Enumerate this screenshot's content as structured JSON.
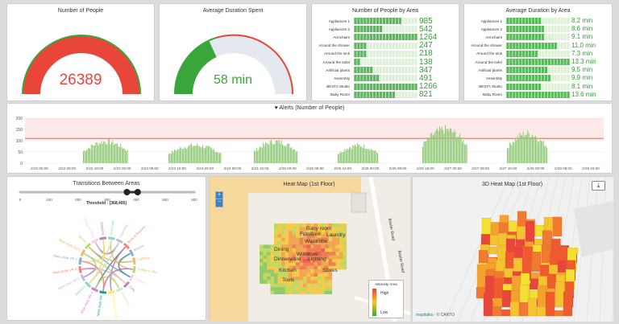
{
  "panels": {
    "number_of_people": {
      "title": "Number of People",
      "value": "26389",
      "fraction": 1.0,
      "color": "#e8463b"
    },
    "avg_duration": {
      "title": "Average Duration Spent",
      "value": "58 min",
      "fraction": 0.32,
      "color": "#3aa53a"
    },
    "people_by_area": {
      "title": "Number of People by Area",
      "rows": [
        {
          "label": "Appliances 1",
          "value": "985",
          "fill": 0.75
        },
        {
          "label": "Appliances 2",
          "value": "542",
          "fill": 0.45
        },
        {
          "label": "Armchairs",
          "value": "1264",
          "fill": 1.0
        },
        {
          "label": "Around the shower",
          "value": "247",
          "fill": 0.2
        },
        {
          "label": "Around the sink",
          "value": "218",
          "fill": 0.18
        },
        {
          "label": "Around the toilet",
          "value": "138",
          "fill": 0.1
        },
        {
          "label": "Artificial plants",
          "value": "347",
          "fill": 0.28
        },
        {
          "label": "Assembly",
          "value": "491",
          "fill": 0.4
        },
        {
          "label": "BESTA Studio",
          "value": "1266",
          "fill": 1.0
        },
        {
          "label": "Baby Room",
          "value": "821",
          "fill": 0.65
        }
      ]
    },
    "duration_by_area": {
      "title": "Average Duration by Area",
      "rows": [
        {
          "label": "Appliances 1",
          "value": "8.2 min",
          "fill": 0.55
        },
        {
          "label": "Appliances 2",
          "value": "8.6 min",
          "fill": 0.58
        },
        {
          "label": "Armchairs",
          "value": "9.1 min",
          "fill": 0.62
        },
        {
          "label": "Around the shower",
          "value": "11.0 min",
          "fill": 0.8
        },
        {
          "label": "Around the sink",
          "value": "7.3 min",
          "fill": 0.5
        },
        {
          "label": "Around the toilet",
          "value": "13.3 min",
          "fill": 1.0
        },
        {
          "label": "Artificial plants",
          "value": "9.5 min",
          "fill": 0.65
        },
        {
          "label": "Assembly",
          "value": "9.9 min",
          "fill": 0.68
        },
        {
          "label": "BESTA Studio",
          "value": "8.1 min",
          "fill": 0.55
        },
        {
          "label": "Baby Room",
          "value": "13.6 min",
          "fill": 1.0
        }
      ]
    },
    "alerts": {
      "title": "Alerts (Number of People)",
      "icon": "heart-icon",
      "y_ticks": [
        "200",
        "150",
        "100",
        "50",
        "0"
      ],
      "x_ticks": [
        "2/22 00:00",
        "2/22 08:00",
        "2/22 16:00",
        "2/23 00:00",
        "2/23 08:00",
        "2/23 16:00",
        "2/24 00:00",
        "2/24 08:00",
        "2/24 16:00",
        "2/25 00:00",
        "2/25 08:00",
        "2/25 16:00",
        "2/26 00:00",
        "2/26 08:00",
        "2/26 16:00",
        "2/27 00:00",
        "2/27 08:00",
        "2/27 16:00",
        "2/28 00:00",
        "2/28 08:00",
        "2/28 16:00"
      ]
    },
    "transitions": {
      "title": "Transitions Between Areas",
      "slider_ticks": [
        "0",
        "100",
        "200",
        "300",
        "400",
        "500",
        "600"
      ],
      "slider_range": [
        368,
        405
      ],
      "threshold": "Threshold : [368,405]",
      "arc_labels": [
        "Armchairs",
        "Assembly",
        "Birds & Nursery",
        "Kitchen",
        "Lighting",
        "Coffee & Tea",
        "Display",
        "Sofa",
        "Glassware",
        "Kitchen Accessories",
        "Main Aisle VR",
        "Main Aisle VR 4",
        "Mattress",
        "Main Aisle VR 2",
        "Main Aisle VR 3",
        "Main Aisle VR 1",
        "Main Aisle VR 6",
        "Mirrors",
        "Ready to hang",
        "Stripping"
      ]
    },
    "heatmap": {
      "title": "Heat Map (1st Floor)",
      "legend_title": "Intensity Area",
      "legend_high": "High",
      "legend_low": "Low",
      "map_labels": [
        "Baby room",
        "Furniture",
        "Laundry",
        "Dining",
        "Lighting",
        "Windows",
        "Dinnerware",
        "Kitchen",
        "Tools",
        "Wardrobe",
        "Stores",
        "Baxter Road",
        "Baxter Road"
      ]
    },
    "heatmap3d": {
      "title": "3D Heat Map (1st Floor)",
      "attribution_link": "mapitalks",
      "attribution_text": "· © CARTO"
    }
  }
}
